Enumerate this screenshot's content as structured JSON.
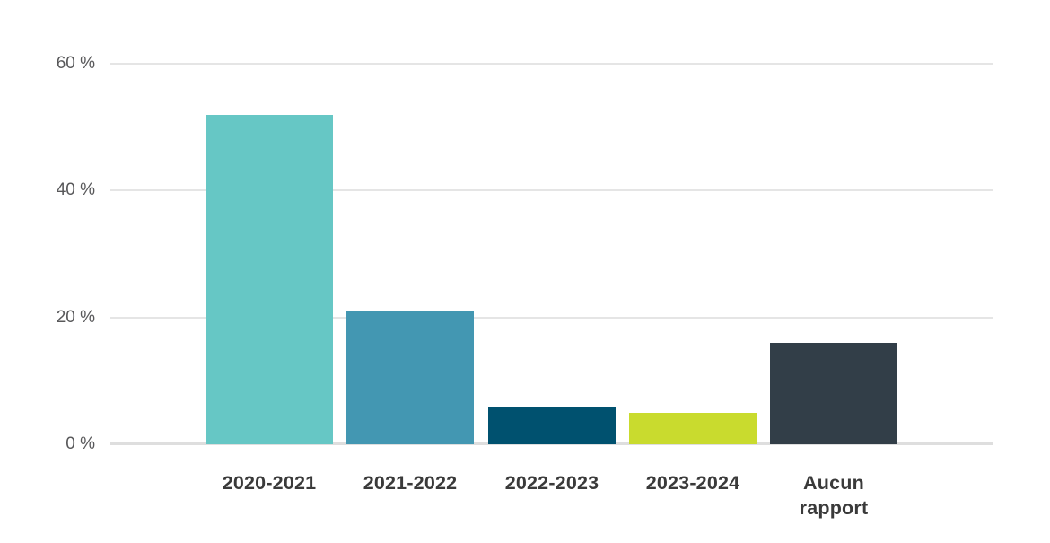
{
  "chart_data": {
    "type": "bar",
    "title": "",
    "xlabel": "",
    "ylabel": "",
    "categories": [
      "2020-2021",
      "2021-2022",
      "2022-2023",
      "2023-2024",
      "Aucun rapport"
    ],
    "category_display": [
      "2020-2021",
      "2021-2022",
      "2022-2023",
      "2023-2024",
      "Aucun\nrapport"
    ],
    "values": [
      52,
      21,
      6,
      5,
      16
    ],
    "unit": "%",
    "bar_colors": [
      "#66C7C5",
      "#4397B2",
      "#00516F",
      "#C9DB2E",
      "#323E48"
    ],
    "ylim": [
      0,
      60
    ],
    "yticks": [
      0,
      20,
      40,
      60
    ],
    "ytick_labels": [
      "0 %",
      "20 %",
      "40 %",
      "60 %"
    ],
    "grid": true,
    "legend_position": "none",
    "colors": {
      "background": "#FFFFFF",
      "gridline": "#E5E5E5",
      "baseline": "#DEDEDE",
      "ytick_text": "#58585A",
      "xtick_text": "#3A3A3A"
    }
  }
}
